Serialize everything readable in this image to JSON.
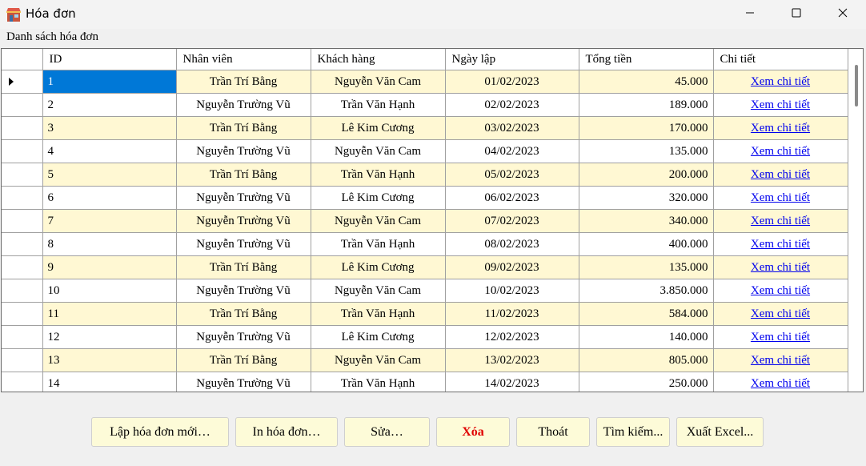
{
  "window": {
    "title": "Hóa đơn"
  },
  "group": {
    "label": "Danh sách hóa đơn"
  },
  "columns": [
    "ID",
    "Nhân viên",
    "Khách hàng",
    "Ngày lập",
    "Tổng tiền",
    "Chi tiết"
  ],
  "rows": [
    {
      "id": "1",
      "employee": "Trần Trí Bằng",
      "customer": "Nguyễn Văn Cam",
      "date": "01/02/2023",
      "total": "45.000",
      "detail": "Xem chi tiết"
    },
    {
      "id": "2",
      "employee": "Nguyễn Trường Vũ",
      "customer": "Trần Văn Hạnh",
      "date": "02/02/2023",
      "total": "189.000",
      "detail": "Xem chi tiết"
    },
    {
      "id": "3",
      "employee": "Trần Trí Bằng",
      "customer": "Lê Kim Cương",
      "date": "03/02/2023",
      "total": "170.000",
      "detail": "Xem chi tiết"
    },
    {
      "id": "4",
      "employee": "Nguyễn Trường Vũ",
      "customer": "Nguyễn Văn Cam",
      "date": "04/02/2023",
      "total": "135.000",
      "detail": "Xem chi tiết"
    },
    {
      "id": "5",
      "employee": "Trần Trí Bằng",
      "customer": "Trần Văn Hạnh",
      "date": "05/02/2023",
      "total": "200.000",
      "detail": "Xem chi tiết"
    },
    {
      "id": "6",
      "employee": "Nguyễn Trường Vũ",
      "customer": "Lê Kim Cương",
      "date": "06/02/2023",
      "total": "320.000",
      "detail": "Xem chi tiết"
    },
    {
      "id": "7",
      "employee": "Nguyễn Trường Vũ",
      "customer": "Nguyễn Văn Cam",
      "date": "07/02/2023",
      "total": "340.000",
      "detail": "Xem chi tiết"
    },
    {
      "id": "8",
      "employee": "Nguyễn Trường Vũ",
      "customer": "Trần Văn Hạnh",
      "date": "08/02/2023",
      "total": "400.000",
      "detail": "Xem chi tiết"
    },
    {
      "id": "9",
      "employee": "Trần Trí Bằng",
      "customer": "Lê Kim Cương",
      "date": "09/02/2023",
      "total": "135.000",
      "detail": "Xem chi tiết"
    },
    {
      "id": "10",
      "employee": "Nguyễn Trường Vũ",
      "customer": "Nguyễn Văn Cam",
      "date": "10/02/2023",
      "total": "3.850.000",
      "detail": "Xem chi tiết"
    },
    {
      "id": "11",
      "employee": "Trần Trí Bằng",
      "customer": "Trần Văn Hạnh",
      "date": "11/02/2023",
      "total": "584.000",
      "detail": "Xem chi tiết"
    },
    {
      "id": "12",
      "employee": "Nguyễn Trường Vũ",
      "customer": "Lê Kim Cương",
      "date": "12/02/2023",
      "total": "140.000",
      "detail": "Xem chi tiết"
    },
    {
      "id": "13",
      "employee": "Trần Trí Bằng",
      "customer": "Nguyễn Văn Cam",
      "date": "13/02/2023",
      "total": "805.000",
      "detail": "Xem chi tiết"
    },
    {
      "id": "14",
      "employee": "Nguyễn Trường Vũ",
      "customer": "Trần Văn Hạnh",
      "date": "14/02/2023",
      "total": "250.000",
      "detail": "Xem chi tiết"
    }
  ],
  "buttons": {
    "new": "Lập hóa đơn mới…",
    "print": "In hóa đơn…",
    "edit": "Sửa…",
    "delete": "Xóa",
    "exit": "Thoát",
    "search": "Tìm kiếm...",
    "export": "Xuất Excel..."
  },
  "icons": {
    "app": "store-icon",
    "minimize": "minimize-icon",
    "maximize": "maximize-icon",
    "close": "close-icon",
    "current_row": "row-pointer-icon"
  },
  "colors": {
    "alt_row": "#fff8d3",
    "selection": "#0078d7",
    "button_bg": "#fdfbd8",
    "danger": "#e00000",
    "link": "#0000ee"
  }
}
